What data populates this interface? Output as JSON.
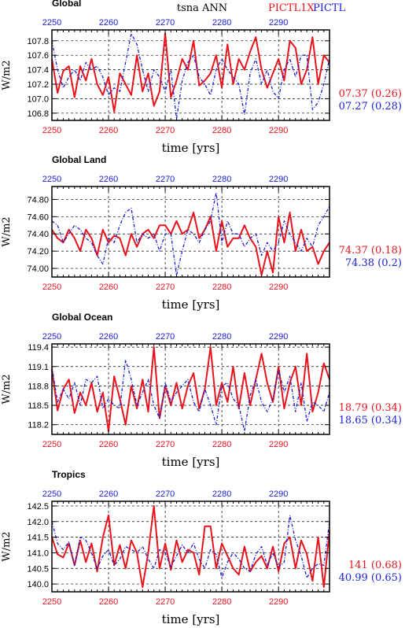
{
  "header": {
    "title": "tsna ANN",
    "legend": [
      {
        "name": "PICTL1X",
        "color": "#e8141d"
      },
      {
        "name": "PICTL",
        "color": "#1a1fd6"
      }
    ]
  },
  "colors": {
    "red": "#e8141d",
    "blue": "#1a1fd6",
    "grid": "#000000"
  },
  "x_label": "time [yrs]",
  "chart_data": [
    {
      "type": "line",
      "title": "Global",
      "xlabel": "time [yrs]",
      "ylabel": "W/m2",
      "xlim": [
        2250,
        2299
      ],
      "ylim": [
        106.7,
        107.95
      ],
      "xticks": [
        2250,
        2260,
        2270,
        2280,
        2290
      ],
      "xtick_labels": [
        "2250",
        "2260",
        "2270",
        "2280",
        "2290"
      ],
      "yticks": [
        106.8,
        107.0,
        107.2,
        107.4,
        107.6,
        107.8
      ],
      "ytick_labels": [
        "106.8",
        "107.0",
        "107.2",
        "107.4",
        "107.6",
        "107.8"
      ],
      "grid": true,
      "series": [
        {
          "name": "PICTL1X",
          "color": "#e8141d",
          "style": "solid",
          "stat": "07.37 (0.26)",
          "start": 2250,
          "values": [
            107.55,
            107.08,
            107.38,
            107.45,
            107.02,
            107.45,
            107.25,
            107.55,
            107.2,
            107.05,
            107.3,
            106.82,
            107.35,
            107.2,
            107.05,
            107.6,
            107.1,
            107.35,
            106.9,
            107.1,
            107.9,
            107.02,
            107.25,
            107.55,
            107.4,
            107.8,
            107.18,
            107.25,
            107.35,
            107.6,
            107.15,
            107.75,
            107.2,
            107.55,
            107.4,
            107.65,
            107.85,
            107.4,
            107.15,
            107.35,
            107.55,
            107.25,
            107.8,
            107.7,
            107.2,
            107.4,
            107.85,
            107.2,
            107.6,
            107.5
          ]
        },
        {
          "name": "PICTL",
          "color": "#1a1fd6",
          "style": "dashed",
          "stat": "07.27 (0.28)",
          "start": 2250,
          "values": [
            107.8,
            107.4,
            107.15,
            107.3,
            107.4,
            107.25,
            107.5,
            107.4,
            107.45,
            107.3,
            107.05,
            107.15,
            107.1,
            107.5,
            107.9,
            107.75,
            107.4,
            107.1,
            107.4,
            107.3,
            107.1,
            107.4,
            106.72,
            107.25,
            107.5,
            107.6,
            107.3,
            107.2,
            107.05,
            107.4,
            107.55,
            107.4,
            107.3,
            107.2,
            106.78,
            107.35,
            107.55,
            107.2,
            107.4,
            107.1,
            107.0,
            107.4,
            107.55,
            107.3,
            107.6,
            107.6,
            106.85,
            106.95,
            107.2,
            107.55
          ]
        }
      ]
    },
    {
      "type": "line",
      "title": "Global Land",
      "xlabel": "time [yrs]",
      "ylabel": "W/m2",
      "xlim": [
        2250,
        2299
      ],
      "ylim": [
        73.9,
        74.95
      ],
      "xticks": [
        2250,
        2260,
        2270,
        2280,
        2290
      ],
      "xtick_labels": [
        "2250",
        "2260",
        "2270",
        "2280",
        "2290"
      ],
      "yticks": [
        74.0,
        74.2,
        74.4,
        74.6,
        74.8
      ],
      "ytick_labels": [
        "74.00",
        "74.20",
        "74.40",
        "74.60",
        "74.80"
      ],
      "grid": true,
      "series": [
        {
          "name": "PICTL1X",
          "color": "#e8141d",
          "style": "solid",
          "stat": "74.37 (0.18)",
          "start": 2250,
          "values": [
            74.45,
            74.35,
            74.3,
            74.45,
            74.35,
            74.2,
            74.45,
            74.35,
            74.15,
            74.45,
            74.3,
            74.38,
            74.35,
            74.15,
            74.4,
            74.25,
            74.4,
            74.45,
            74.35,
            74.5,
            74.5,
            74.4,
            74.55,
            74.4,
            74.45,
            74.65,
            74.35,
            74.45,
            74.6,
            74.2,
            74.55,
            74.25,
            74.35,
            74.35,
            74.5,
            74.35,
            74.25,
            73.92,
            74.2,
            73.95,
            74.6,
            74.3,
            74.65,
            74.2,
            74.45,
            74.2,
            74.25,
            74.05,
            74.2,
            74.3
          ]
        },
        {
          "name": "PICTL",
          "color": "#1a1fd6",
          "style": "dashed",
          "stat": "74.38 (0.2)",
          "start": 2250,
          "values": [
            74.55,
            74.5,
            74.3,
            74.4,
            74.5,
            74.45,
            74.35,
            74.3,
            74.15,
            74.05,
            74.35,
            74.3,
            74.5,
            74.65,
            74.7,
            74.3,
            74.4,
            74.35,
            74.4,
            74.2,
            74.4,
            74.4,
            73.92,
            74.2,
            74.45,
            74.4,
            74.3,
            74.45,
            74.55,
            74.88,
            74.3,
            74.55,
            74.4,
            74.4,
            74.25,
            74.35,
            74.4,
            74.15,
            74.3,
            74.2,
            74.3,
            74.55,
            74.4,
            74.3,
            74.2,
            74.35,
            74.25,
            74.5,
            74.6,
            74.72
          ]
        }
      ]
    },
    {
      "type": "line",
      "title": "Global Ocean",
      "xlabel": "time [yrs]",
      "ylabel": "W/m2",
      "xlim": [
        2250,
        2299
      ],
      "ylim": [
        118.05,
        119.45
      ],
      "xticks": [
        2250,
        2260,
        2270,
        2280,
        2290
      ],
      "xtick_labels": [
        "2250",
        "2260",
        "2270",
        "2280",
        "2290"
      ],
      "yticks": [
        118.2,
        118.5,
        118.8,
        119.1,
        119.4
      ],
      "ytick_labels": [
        "118.2",
        "118.5",
        "118.8",
        "119.1",
        "119.4"
      ],
      "grid": true,
      "series": [
        {
          "name": "PICTL1X",
          "color": "#e8141d",
          "style": "solid",
          "stat": "18.79 (0.34)",
          "start": 2250,
          "values": [
            119.05,
            118.42,
            118.75,
            118.9,
            118.38,
            118.7,
            118.5,
            118.85,
            118.4,
            118.7,
            118.1,
            118.95,
            118.6,
            118.2,
            118.8,
            118.45,
            118.9,
            118.4,
            119.4,
            118.3,
            118.8,
            118.5,
            118.85,
            118.45,
            118.8,
            119.0,
            118.45,
            118.75,
            119.4,
            118.5,
            118.85,
            118.55,
            119.1,
            118.45,
            119.0,
            118.5,
            118.9,
            119.3,
            118.85,
            118.55,
            119.1,
            118.45,
            118.85,
            119.1,
            118.5,
            119.3,
            118.4,
            118.7,
            119.15,
            118.9
          ]
        },
        {
          "name": "PICTL",
          "color": "#1a1fd6",
          "style": "dashed",
          "stat": "18.65 (0.34)",
          "start": 2250,
          "values": [
            119.1,
            118.55,
            118.75,
            118.6,
            118.85,
            118.5,
            118.9,
            118.85,
            118.95,
            118.45,
            118.6,
            118.5,
            118.45,
            119.2,
            118.9,
            118.5,
            118.7,
            118.9,
            118.5,
            118.3,
            118.85,
            118.55,
            118.7,
            118.8,
            118.9,
            118.55,
            118.4,
            118.75,
            118.5,
            118.2,
            118.8,
            118.85,
            118.6,
            118.5,
            118.1,
            118.65,
            118.9,
            118.55,
            118.4,
            118.6,
            119.05,
            118.7,
            118.95,
            118.4,
            118.85,
            118.25,
            118.55,
            118.5,
            118.4,
            118.7
          ]
        }
      ]
    },
    {
      "type": "line",
      "title": "Tropics",
      "xlabel": "time [yrs]",
      "ylabel": "W/m2",
      "xlim": [
        2250,
        2299
      ],
      "ylim": [
        139.75,
        142.65
      ],
      "xticks": [
        2250,
        2260,
        2270,
        2280,
        2290
      ],
      "xtick_labels": [
        "2250",
        "2260",
        "2270",
        "2280",
        "2290"
      ],
      "yticks": [
        140.0,
        140.5,
        141.0,
        141.5,
        142.0,
        142.5
      ],
      "ytick_labels": [
        "140.0",
        "140.5",
        "141.0",
        "141.5",
        "142.0",
        "142.5"
      ],
      "grid": true,
      "series": [
        {
          "name": "PICTL1X",
          "color": "#e8141d",
          "style": "solid",
          "stat": "141 (0.68)",
          "start": 2250,
          "values": [
            141.5,
            140.95,
            140.85,
            141.3,
            140.6,
            141.4,
            140.7,
            141.3,
            140.4,
            141.5,
            142.2,
            140.6,
            141.25,
            140.5,
            141.4,
            141.0,
            139.9,
            141.0,
            142.5,
            140.5,
            141.3,
            140.45,
            141.4,
            140.7,
            141.1,
            141.0,
            140.3,
            141.85,
            141.85,
            140.5,
            141.3,
            140.9,
            140.5,
            140.3,
            141.2,
            140.4,
            140.7,
            140.9,
            140.5,
            141.2,
            140.4,
            141.3,
            141.5,
            140.5,
            141.4,
            140.95,
            140.1,
            141.5,
            139.9,
            141.7
          ]
        },
        {
          "name": "PICTL",
          "color": "#1a1fd6",
          "style": "dashed",
          "stat": "40.99 (0.65)",
          "start": 2250,
          "values": [
            142.0,
            141.3,
            141.1,
            141.35,
            140.6,
            141.5,
            141.4,
            141.0,
            140.5,
            140.9,
            141.1,
            140.6,
            140.8,
            141.2,
            141.1,
            141.0,
            141.2,
            140.8,
            140.5,
            141.1,
            141.0,
            140.55,
            140.9,
            141.25,
            141.0,
            141.3,
            140.8,
            140.5,
            141.1,
            140.95,
            140.2,
            140.7,
            141.0,
            140.8,
            140.5,
            140.4,
            140.95,
            141.2,
            140.6,
            141.0,
            140.55,
            140.7,
            142.2,
            141.4,
            140.9,
            140.2,
            140.5,
            140.65,
            140.6,
            142.0
          ]
        }
      ]
    }
  ]
}
